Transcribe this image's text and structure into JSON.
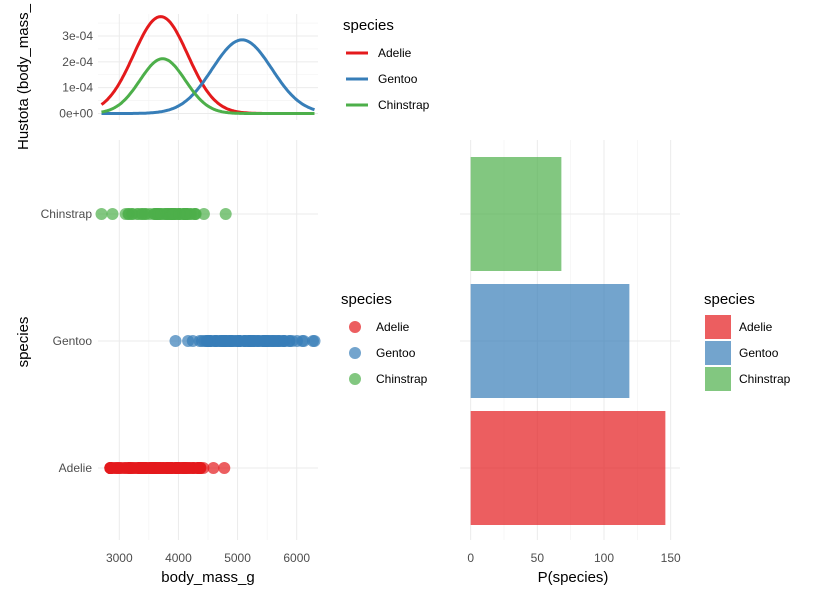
{
  "colors": {
    "Adelie": "#E41A1C",
    "Gentoo": "#377EB8",
    "Chinstrap": "#4DAF4A"
  },
  "chart_data": [
    {
      "type": "line",
      "xlabel": "",
      "ylabel": "Hustota (body_mass_",
      "xlim": [
        2700,
        6300
      ],
      "ylim": [
        0,
        0.00037
      ],
      "y_ticks": [
        "0e+00",
        "1e-04",
        "2e-04",
        "3e-04"
      ],
      "y_tick_values": [
        0,
        0.0001,
        0.0002,
        0.0003
      ],
      "legend_title": "species",
      "legend_position": "right",
      "series": [
        {
          "name": "Adelie",
          "mean": 3700,
          "sd": 458,
          "peak": 0.000375
        },
        {
          "name": "Gentoo",
          "mean": 5076,
          "sd": 504,
          "peak": 0.000285
        },
        {
          "name": "Chinstrap",
          "mean": 3733,
          "sd": 384,
          "peak": 0.000212
        }
      ]
    },
    {
      "type": "scatter",
      "xlabel": "body_mass_g",
      "ylabel": "species",
      "categories": [
        "Adelie",
        "Gentoo",
        "Chinstrap"
      ],
      "xlim": [
        2700,
        6300
      ],
      "x_ticks": [
        "3000",
        "4000",
        "5000",
        "6000"
      ],
      "x_tick_values": [
        3000,
        4000,
        5000,
        6000
      ],
      "legend_title": "species",
      "legend_position": "right",
      "series": [
        {
          "name": "Adelie",
          "range": [
            2850,
            4775
          ]
        },
        {
          "name": "Gentoo",
          "range": [
            3950,
            6300
          ]
        },
        {
          "name": "Chinstrap",
          "range": [
            2700,
            4800
          ]
        }
      ]
    },
    {
      "type": "bar",
      "orientation": "horizontal",
      "xlabel": "P(species)",
      "ylabel": "",
      "categories": [
        "Adelie",
        "Gentoo",
        "Chinstrap"
      ],
      "values": [
        146,
        119,
        68
      ],
      "xlim": [
        0,
        150
      ],
      "x_ticks": [
        "0",
        "50",
        "100",
        "150"
      ],
      "x_tick_values": [
        0,
        50,
        100,
        150
      ],
      "legend_title": "species",
      "legend_position": "right"
    }
  ]
}
